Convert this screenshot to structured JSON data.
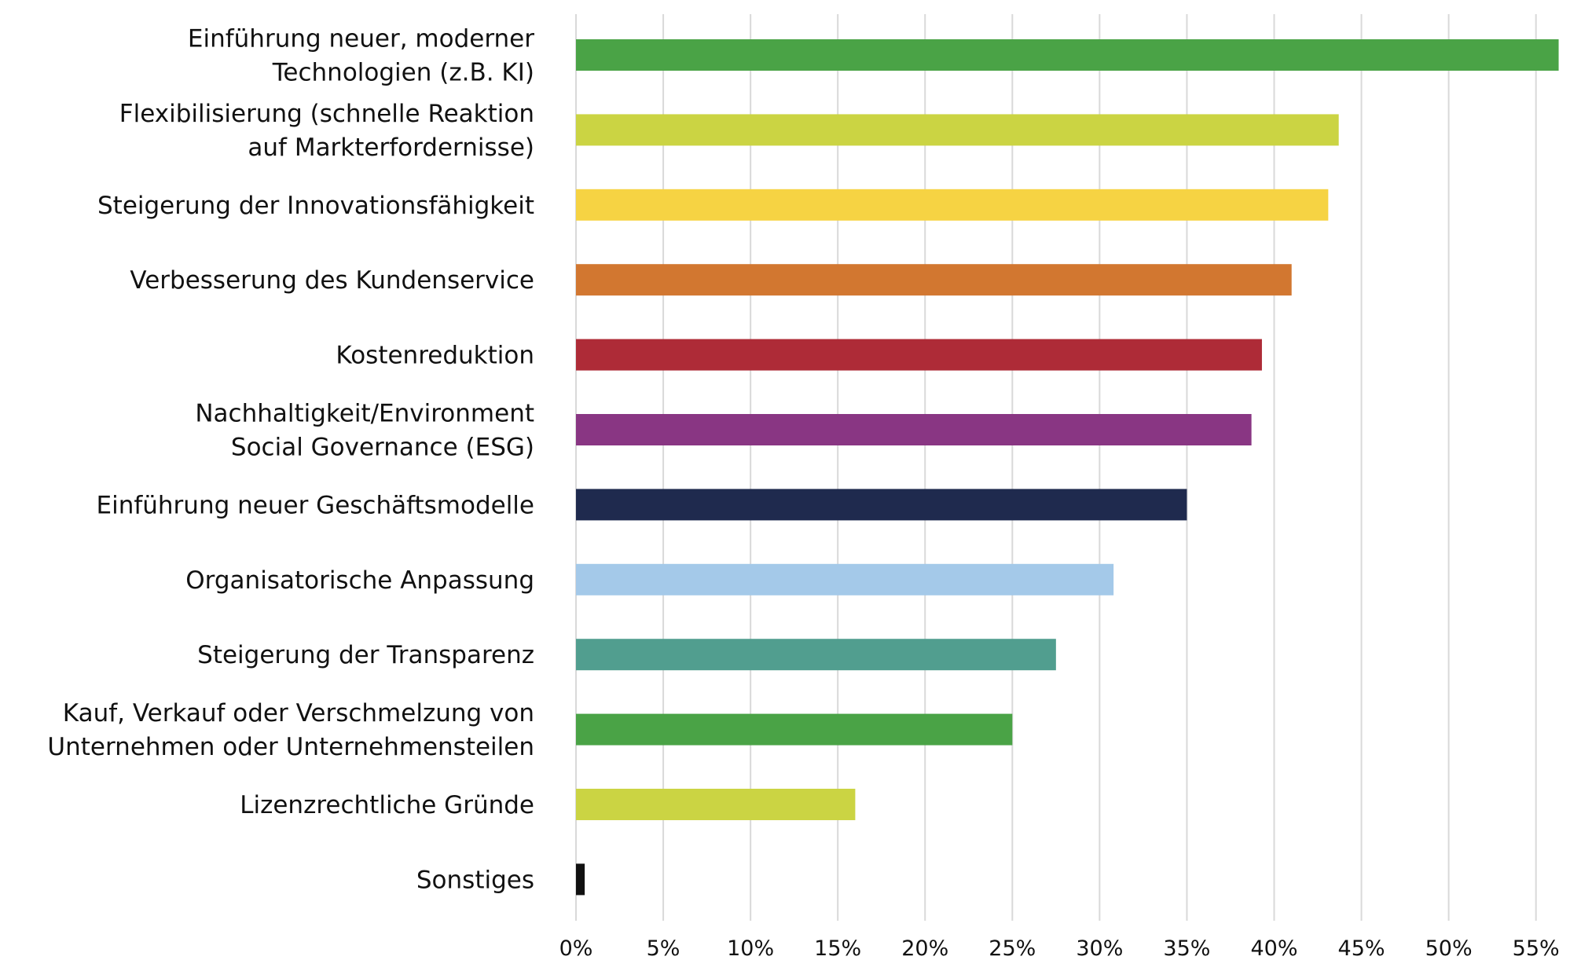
{
  "chart_data": {
    "type": "bar",
    "orientation": "horizontal",
    "title": "",
    "xlabel": "",
    "ylabel": "",
    "xlim": [
      0,
      56.5
    ],
    "grid": true,
    "legend": "none",
    "xticks": [
      0,
      5,
      10,
      15,
      20,
      25,
      30,
      35,
      40,
      45,
      50,
      55
    ],
    "xtick_labels": [
      "0%",
      "5%",
      "10%",
      "15%",
      "20%",
      "25%",
      "30%",
      "35%",
      "40%",
      "45%",
      "50%",
      "55%"
    ],
    "categories": [
      [
        "Einführung neuer, moderner",
        "Technologien (z.B. KI)"
      ],
      [
        "Flexibilisierung (schnelle Reaktion",
        "auf Markterfordernisse)"
      ],
      [
        "Steigerung der Innovationsfähigkeit"
      ],
      [
        "Verbesserung des Kundenservice"
      ],
      [
        "Kostenreduktion"
      ],
      [
        "Nachhaltigkeit/Environment",
        "Social Governance (ESG)"
      ],
      [
        "Einführung neuer Geschäftsmodelle"
      ],
      [
        "Organisatorische Anpassung"
      ],
      [
        "Steigerung der Transparenz"
      ],
      [
        "Kauf, Verkauf oder Verschmelzung von",
        "Unternehmen oder Unternehmensteilen"
      ],
      [
        "Lizenzrechtliche Gründe"
      ],
      [
        "Sonstiges"
      ]
    ],
    "values": [
      56.3,
      43.7,
      43.1,
      41.0,
      39.3,
      38.7,
      35.0,
      30.8,
      27.5,
      25.0,
      16.0,
      0.5
    ],
    "colors": [
      "#4aa346",
      "#cbd443",
      "#f6d343",
      "#d27730",
      "#ae2b37",
      "#893683",
      "#1f2a4e",
      "#a4c9e9",
      "#519e8f",
      "#4aa346",
      "#cbd443",
      "#111111"
    ]
  }
}
